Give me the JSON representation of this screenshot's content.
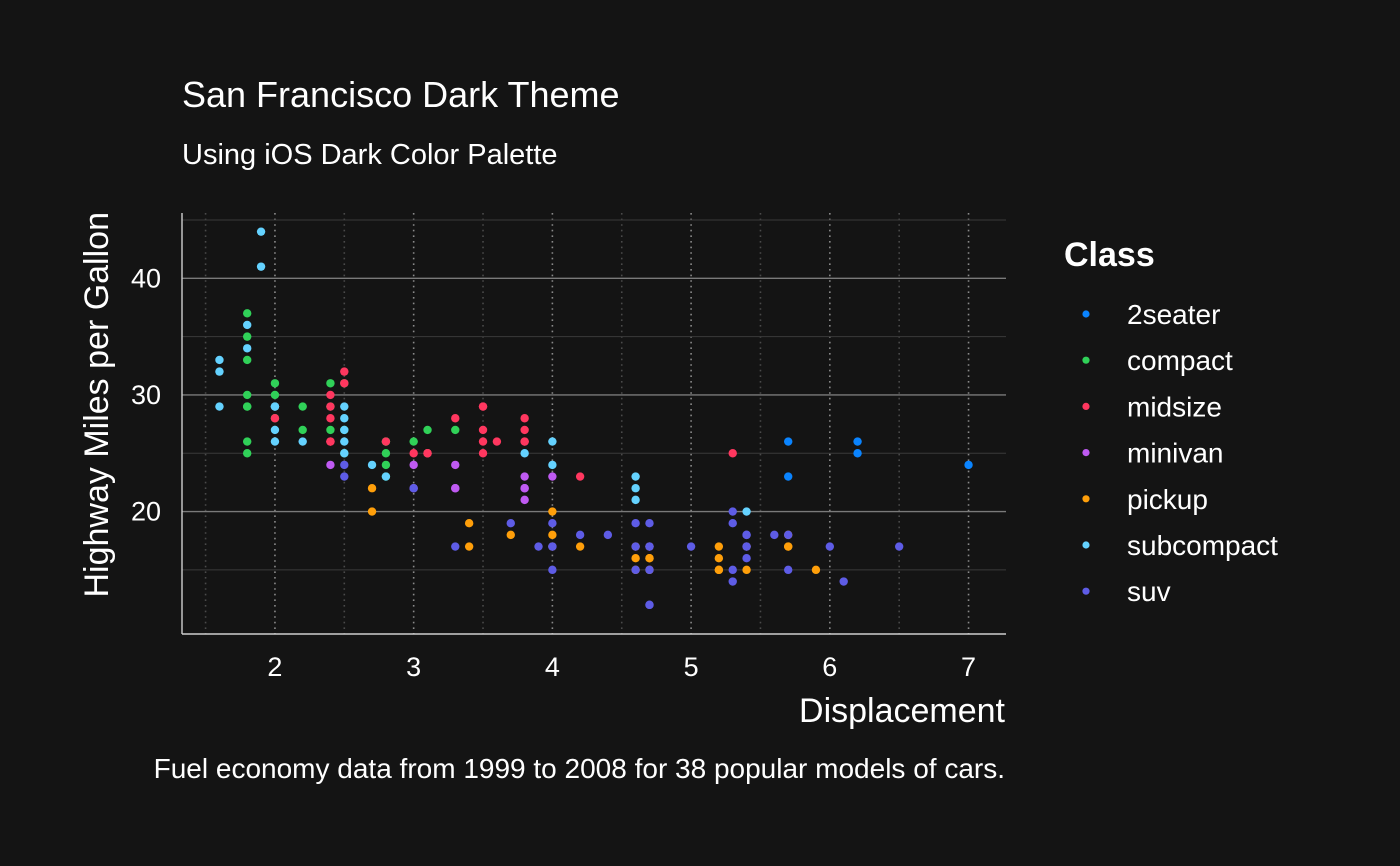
{
  "chart_data": {
    "type": "scatter",
    "title": "San Francisco Dark Theme",
    "subtitle": "Using iOS Dark Color Palette",
    "caption": "Fuel economy data from 1999 to 2008 for 38 popular models of cars.",
    "xlabel": "Displacement",
    "ylabel": "Highway Miles per Gallon",
    "xlim": [
      1.33,
      7.27
    ],
    "ylim": [
      9.5,
      45.6
    ],
    "xticks": [
      2,
      3,
      4,
      5,
      6,
      7
    ],
    "yticks": [
      20,
      30,
      40
    ],
    "grid": true,
    "legend_title": "Class",
    "legend_position": "right",
    "series": [
      {
        "name": "2seater",
        "color": "#0A84FF",
        "points": [
          [
            5.7,
            26
          ],
          [
            5.7,
            23
          ],
          [
            6.2,
            26
          ],
          [
            6.2,
            25
          ],
          [
            7.0,
            24
          ]
        ]
      },
      {
        "name": "compact",
        "color": "#30D158",
        "points": [
          [
            1.8,
            29
          ],
          [
            1.8,
            29
          ],
          [
            2.0,
            31
          ],
          [
            2.0,
            30
          ],
          [
            2.8,
            26
          ],
          [
            2.8,
            26
          ],
          [
            3.1,
            27
          ],
          [
            1.8,
            26
          ],
          [
            1.8,
            25
          ],
          [
            2.0,
            28
          ],
          [
            2.0,
            29
          ],
          [
            2.8,
            24
          ],
          [
            2.8,
            25
          ],
          [
            3.1,
            25
          ],
          [
            2.2,
            27
          ],
          [
            2.2,
            29
          ],
          [
            2.5,
            27
          ],
          [
            2.5,
            31
          ],
          [
            3.0,
            26
          ],
          [
            1.8,
            37
          ],
          [
            1.8,
            35
          ],
          [
            1.8,
            33
          ],
          [
            1.8,
            30
          ],
          [
            2.4,
            31
          ],
          [
            2.4,
            29
          ],
          [
            2.4,
            27
          ],
          [
            2.5,
            25
          ],
          [
            2.8,
            23
          ],
          [
            3.3,
            27
          ]
        ]
      },
      {
        "name": "midsize",
        "color": "#FF375F",
        "points": [
          [
            2.8,
            26
          ],
          [
            3.1,
            25
          ],
          [
            4.2,
            23
          ],
          [
            2.4,
            30
          ],
          [
            2.4,
            26
          ],
          [
            3.1,
            25
          ],
          [
            3.5,
            29
          ],
          [
            3.6,
            26
          ],
          [
            2.4,
            29
          ],
          [
            2.4,
            26
          ],
          [
            3.3,
            28
          ],
          [
            3.5,
            26
          ],
          [
            2.5,
            32
          ],
          [
            2.5,
            31
          ],
          [
            3.5,
            25
          ],
          [
            3.5,
            27
          ],
          [
            2.0,
            29
          ],
          [
            2.0,
            28
          ],
          [
            3.0,
            25
          ],
          [
            3.8,
            26
          ],
          [
            3.8,
            28
          ],
          [
            5.3,
            25
          ],
          [
            2.4,
            28
          ],
          [
            2.4,
            26
          ],
          [
            3.5,
            29
          ],
          [
            3.8,
            27
          ],
          [
            3.8,
            26
          ]
        ]
      },
      {
        "name": "minivan",
        "color": "#BF5AF2",
        "points": [
          [
            2.4,
            24
          ],
          [
            3.0,
            24
          ],
          [
            3.3,
            22
          ],
          [
            3.3,
            24
          ],
          [
            3.8,
            22
          ],
          [
            3.8,
            21
          ],
          [
            3.8,
            23
          ],
          [
            4.0,
            23
          ],
          [
            3.3,
            22
          ],
          [
            3.0,
            22
          ],
          [
            3.8,
            22
          ]
        ]
      },
      {
        "name": "pickup",
        "color": "#FF9F0A",
        "points": [
          [
            2.7,
            20
          ],
          [
            2.7,
            22
          ],
          [
            3.4,
            17
          ],
          [
            3.4,
            19
          ],
          [
            3.7,
            18
          ],
          [
            4.0,
            18
          ],
          [
            4.0,
            17
          ],
          [
            4.2,
            17
          ],
          [
            4.0,
            20
          ],
          [
            4.6,
            17
          ],
          [
            4.6,
            16
          ],
          [
            4.6,
            15
          ],
          [
            4.7,
            16
          ],
          [
            4.7,
            17
          ],
          [
            5.2,
            15
          ],
          [
            5.2,
            16
          ],
          [
            5.2,
            17
          ],
          [
            5.4,
            15
          ],
          [
            5.4,
            17
          ],
          [
            5.7,
            17
          ],
          [
            5.9,
            15
          ],
          [
            5.2,
            15
          ],
          [
            5.7,
            18
          ],
          [
            4.7,
            15
          ],
          [
            4.7,
            16
          ],
          [
            5.7,
            17
          ]
        ]
      },
      {
        "name": "subcompact",
        "color": "#64D2FF",
        "points": [
          [
            1.6,
            33
          ],
          [
            1.6,
            32
          ],
          [
            1.6,
            29
          ],
          [
            1.8,
            34
          ],
          [
            1.8,
            36
          ],
          [
            1.9,
            44
          ],
          [
            1.9,
            41
          ],
          [
            2.0,
            29
          ],
          [
            2.0,
            26
          ],
          [
            2.0,
            29
          ],
          [
            2.0,
            27
          ],
          [
            2.5,
            26
          ],
          [
            2.5,
            29
          ],
          [
            2.5,
            28
          ],
          [
            2.7,
            24
          ],
          [
            2.2,
            26
          ],
          [
            3.8,
            25
          ],
          [
            4.0,
            26
          ],
          [
            4.0,
            24
          ],
          [
            4.6,
            23
          ],
          [
            4.6,
            21
          ],
          [
            4.6,
            22
          ],
          [
            5.4,
            20
          ],
          [
            2.5,
            27
          ],
          [
            2.5,
            25
          ],
          [
            2.8,
            23
          ]
        ]
      },
      {
        "name": "suv",
        "color": "#5E5CE6",
        "points": [
          [
            3.3,
            17
          ],
          [
            3.7,
            19
          ],
          [
            3.9,
            17
          ],
          [
            4.0,
            19
          ],
          [
            4.0,
            17
          ],
          [
            4.0,
            15
          ],
          [
            4.2,
            18
          ],
          [
            4.4,
            18
          ],
          [
            4.6,
            17
          ],
          [
            4.6,
            19
          ],
          [
            4.7,
            17
          ],
          [
            4.7,
            19
          ],
          [
            4.7,
            12
          ],
          [
            4.7,
            12
          ],
          [
            4.7,
            15
          ],
          [
            4.7,
            17
          ],
          [
            5.0,
            17
          ],
          [
            5.3,
            20
          ],
          [
            5.3,
            19
          ],
          [
            5.3,
            15
          ],
          [
            5.3,
            14
          ],
          [
            5.4,
            17
          ],
          [
            5.4,
            18
          ],
          [
            5.4,
            16
          ],
          [
            5.6,
            18
          ],
          [
            5.7,
            15
          ],
          [
            5.7,
            18
          ],
          [
            6.0,
            17
          ],
          [
            6.1,
            14
          ],
          [
            6.5,
            17
          ],
          [
            2.5,
            23
          ],
          [
            2.5,
            24
          ],
          [
            3.0,
            22
          ],
          [
            4.0,
            17
          ],
          [
            4.6,
            15
          ],
          [
            5.4,
            17
          ],
          [
            5.4,
            18
          ]
        ]
      }
    ]
  }
}
